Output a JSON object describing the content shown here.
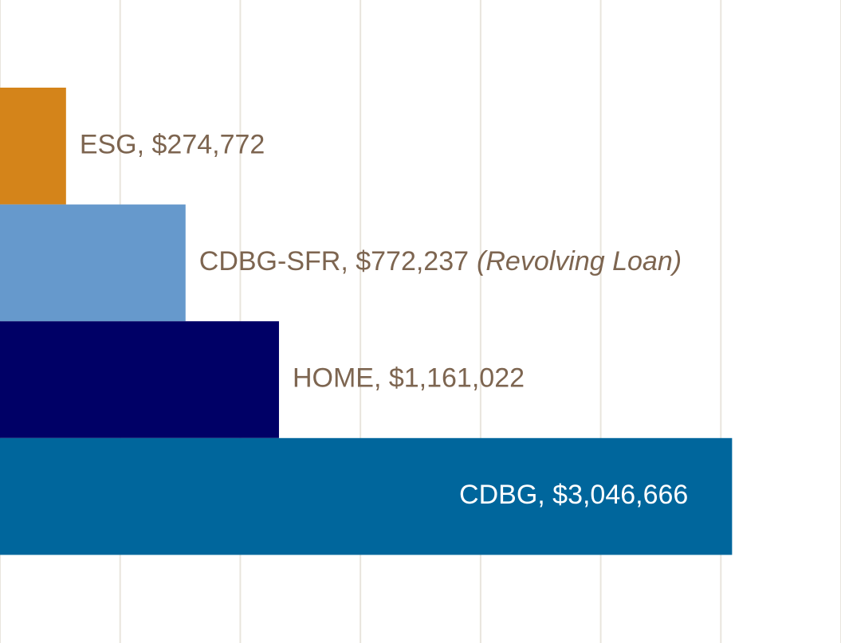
{
  "chart_data": {
    "type": "hbar",
    "values": [
      274772,
      772237,
      1161022,
      3046666
    ],
    "value_labels": [
      "ESG, $274,772",
      "CDBG-SFR, $772,237",
      "HOME, $1,161,022",
      "CDBG, $3,046,666"
    ],
    "value_notes": [
      null,
      "(Revolving Loan)",
      null,
      null
    ],
    "colors": [
      "#d4841a",
      "#6699cc",
      "#000066",
      "#00669c"
    ],
    "xlim": [
      0,
      3500000
    ],
    "xticks": [
      0,
      500000,
      1000000,
      1500000,
      2000000,
      2500000,
      3000000,
      3500000
    ],
    "grid": true
  }
}
